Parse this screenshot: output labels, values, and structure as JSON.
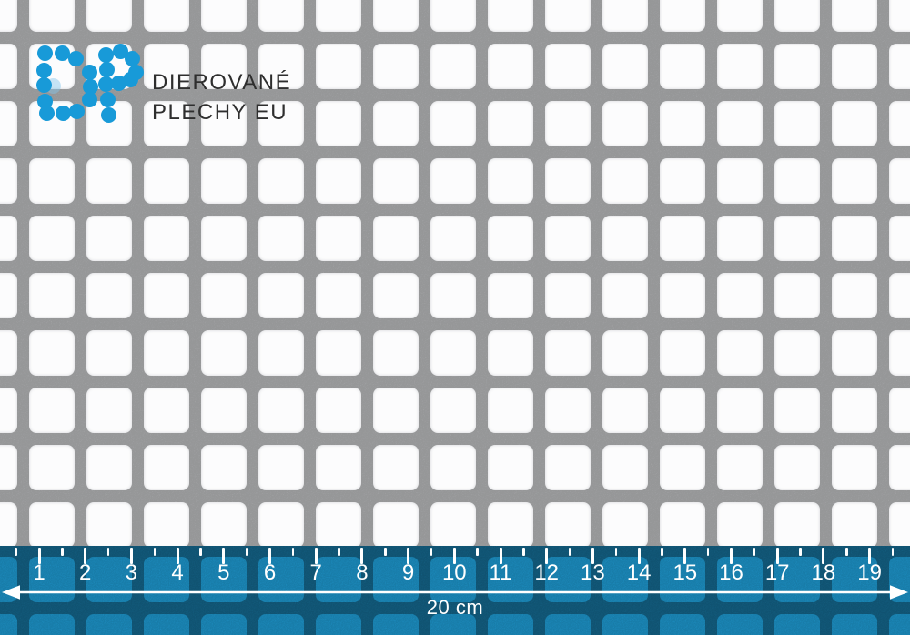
{
  "logo": {
    "line1": "DIEROVANÉ",
    "line2": "PLECHY EU",
    "dot_color": "#189ad8",
    "text_color": "#2e2e2e"
  },
  "sheet": {
    "bar_color": "#b4b5b7",
    "hole_color": "#fcfcfd"
  },
  "ruler": {
    "labels": [
      "1",
      "2",
      "3",
      "4",
      "5",
      "6",
      "7",
      "8",
      "9",
      "10",
      "11",
      "12",
      "13",
      "14",
      "15",
      "16",
      "17",
      "18",
      "19"
    ],
    "total_label": "20 cm",
    "bright_color": "#1f9cd4",
    "dark_color": "#15688e",
    "tick_color": "#ffffff"
  }
}
